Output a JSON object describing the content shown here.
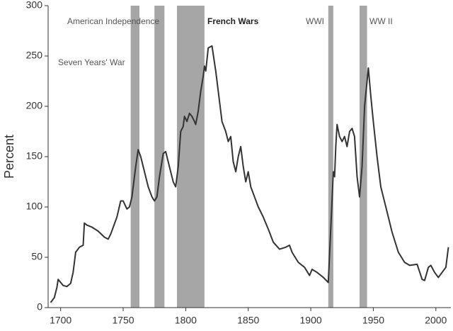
{
  "chart_data": {
    "type": "line",
    "y_label": "Percent",
    "color": "#333333",
    "band_color": "#a6a6a6",
    "x": [
      1692,
      1695,
      1697,
      1698,
      1700,
      1702,
      1705,
      1708,
      1710,
      1712,
      1715,
      1718,
      1719,
      1721,
      1725,
      1730,
      1735,
      1738,
      1740,
      1745,
      1748,
      1750,
      1753,
      1755,
      1757,
      1760,
      1762,
      1764,
      1767,
      1770,
      1773,
      1775,
      1777,
      1779,
      1782,
      1784,
      1786,
      1790,
      1792,
      1794,
      1796,
      1798,
      1799,
      1801,
      1803,
      1805,
      1807,
      1808,
      1810,
      1812,
      1814,
      1815,
      1816,
      1818,
      1821,
      1824,
      1827,
      1829,
      1832,
      1834,
      1836,
      1838,
      1840,
      1842,
      1844,
      1846,
      1848,
      1850,
      1852,
      1855,
      1858,
      1862,
      1866,
      1870,
      1875,
      1880,
      1883,
      1885,
      1890,
      1895,
      1899,
      1901,
      1905,
      1910,
      1914,
      1916,
      1918,
      1919,
      1920,
      1921,
      1923,
      1925,
      1927,
      1929,
      1931,
      1933,
      1935,
      1937,
      1939,
      1941,
      1943,
      1946,
      1948,
      1950,
      1953,
      1956,
      1960,
      1965,
      1970,
      1975,
      1979,
      1985,
      1989,
      1991,
      1994,
      1996,
      1999,
      2002,
      2005,
      2008,
      2010
    ],
    "values": [
      5,
      10,
      20,
      28,
      25,
      22,
      21,
      24,
      35,
      55,
      60,
      62,
      84,
      82,
      80,
      76,
      70,
      68,
      73,
      90,
      106,
      106,
      98,
      100,
      110,
      140,
      157,
      150,
      135,
      120,
      110,
      106,
      110,
      130,
      153,
      155,
      145,
      125,
      120,
      140,
      175,
      180,
      190,
      185,
      193,
      190,
      185,
      182,
      195,
      215,
      230,
      240,
      235,
      258,
      260,
      235,
      205,
      185,
      175,
      165,
      170,
      145,
      135,
      150,
      160,
      140,
      125,
      135,
      120,
      110,
      100,
      90,
      78,
      65,
      58,
      60,
      62,
      55,
      45,
      40,
      32,
      38,
      35,
      30,
      25,
      80,
      135,
      130,
      160,
      182,
      170,
      165,
      170,
      160,
      175,
      178,
      170,
      130,
      110,
      140,
      200,
      238,
      210,
      185,
      150,
      120,
      100,
      75,
      55,
      45,
      42,
      43,
      28,
      27,
      40,
      42,
      35,
      30,
      35,
      40,
      60
    ],
    "xlim": [
      1690,
      2012
    ],
    "xticks": [
      1700,
      1750,
      1800,
      1850,
      1900,
      1950,
      2000
    ],
    "ylim": [
      0,
      300
    ],
    "yticks": [
      0,
      50,
      100,
      150,
      200,
      250,
      300
    ],
    "shaded_periods": [
      {
        "start": 1756,
        "end": 1763
      },
      {
        "start": 1775,
        "end": 1783
      },
      {
        "start": 1793,
        "end": 1815
      },
      {
        "start": 1914,
        "end": 1918
      },
      {
        "start": 1939,
        "end": 1945
      }
    ],
    "annotations": [
      "American Independence",
      "Seven Years' War",
      "French Wars",
      "WWI",
      "WW II"
    ]
  }
}
